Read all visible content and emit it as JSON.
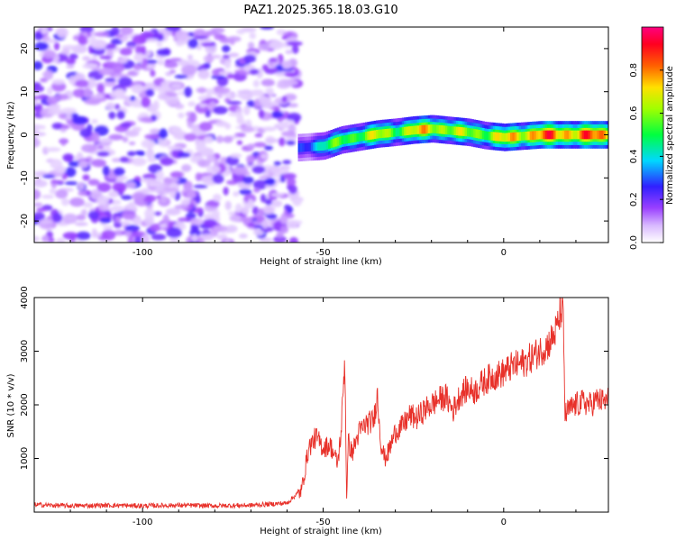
{
  "title": "PAZ1.2025.365.18.03.G10",
  "chart_data": [
    {
      "type": "heatmap",
      "xlabel": "Height of straight line (km)",
      "ylabel": "Frequency (Hz)",
      "xlim": [
        -130,
        29
      ],
      "ylim": [
        -25,
        25
      ],
      "xticks": [
        -100,
        -50,
        0
      ],
      "yticks": [
        -20,
        -10,
        0,
        10,
        20
      ],
      "colorbar": {
        "label": "Normalized spectral amplitude",
        "ticks": [
          0.0,
          0.2,
          0.4,
          0.6,
          0.8
        ],
        "range": [
          0,
          1
        ],
        "colors": [
          "#ffffff",
          "#c080ff",
          "#8000ff",
          "#0000ff",
          "#00ffff",
          "#00ff00",
          "#ffff00",
          "#ff8000",
          "#ff0000",
          "#ff0088"
        ]
      },
      "noise_region": {
        "x_range": [
          -130,
          -57
        ],
        "y_range": [
          -25,
          25
        ],
        "amplitude": [
          0.05,
          0.25
        ]
      },
      "signal_ridge": {
        "x": [
          -57,
          -50,
          -45,
          -40,
          -35,
          -30,
          -25,
          -20,
          -15,
          -10,
          -5,
          0,
          5,
          10,
          15,
          20,
          25,
          29
        ],
        "frequency": [
          -3.0,
          -2.6,
          -1.2,
          -0.5,
          0.2,
          0.6,
          1.1,
          1.4,
          1.0,
          0.6,
          -0.2,
          -0.6,
          -0.3,
          0.0,
          0.0,
          0.0,
          0.0,
          0.0
        ],
        "amplitude": [
          0.3,
          0.55,
          0.65,
          0.7,
          0.75,
          0.7,
          0.8,
          0.85,
          0.75,
          0.7,
          0.75,
          0.8,
          0.9,
          0.95,
          0.95,
          0.95,
          0.95,
          0.9
        ]
      }
    },
    {
      "type": "line",
      "xlabel": "Height of straight line (km)",
      "ylabel": "SNR (10 * v/v)",
      "xlim": [
        -130,
        29
      ],
      "ylim": [
        0,
        4000
      ],
      "xticks": [
        -100,
        -50,
        0
      ],
      "yticks": [
        1000,
        2000,
        3000,
        4000
      ],
      "color": "#e8312a",
      "series": [
        {
          "x": [
            -130,
            -120,
            -110,
            -100,
            -90,
            -80,
            -70,
            -60,
            -56,
            -54,
            -52,
            -50,
            -48,
            -46,
            -45,
            -44,
            -43.5,
            -43,
            -42,
            -40,
            -38,
            -36,
            -35,
            -34,
            -33,
            -32,
            -31,
            -30,
            -28,
            -26,
            -24,
            -22,
            -20,
            -18,
            -16,
            -14,
            -12,
            -10,
            -8,
            -6,
            -4,
            -2,
            0,
            2,
            4,
            6,
            8,
            10,
            12,
            14,
            15,
            16,
            16.5,
            17,
            18,
            20,
            22,
            24,
            26,
            28,
            29
          ],
          "y": [
            120,
            100,
            110,
            100,
            110,
            100,
            110,
            150,
            400,
            1200,
            1400,
            1200,
            1250,
            900,
            1500,
            2900,
            300,
            1300,
            1100,
            1500,
            1650,
            1700,
            2200,
            1300,
            1000,
            1100,
            1300,
            1500,
            1600,
            1800,
            1750,
            1900,
            2000,
            2100,
            2150,
            1900,
            2200,
            2300,
            2250,
            2400,
            2500,
            2550,
            2600,
            2700,
            2750,
            2800,
            2900,
            3000,
            3100,
            3300,
            3500,
            3800,
            3600,
            1800,
            1900,
            2000,
            2050,
            2000,
            2100,
            2050,
            2100
          ]
        }
      ]
    }
  ]
}
